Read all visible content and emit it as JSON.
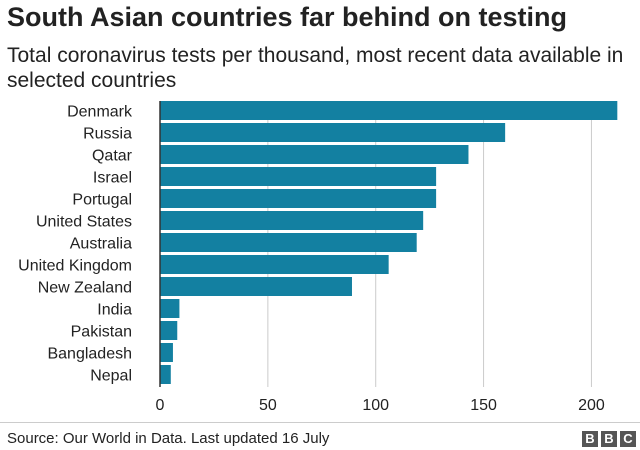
{
  "header": {
    "title": "South Asian countries far behind on testing",
    "subtitle": "Total coronavirus tests per thousand, most recent data available in selected countries"
  },
  "footer": {
    "source": "Source: Our World in Data. Last updated 16 July",
    "logo_letters": [
      "B",
      "B",
      "C"
    ]
  },
  "colors": {
    "bar": "#1380a1",
    "grid": "#cbcbcb",
    "axis": "#333333",
    "text": "#222222"
  },
  "chart_data": {
    "type": "bar",
    "orientation": "horizontal",
    "title": "South Asian countries far behind on testing",
    "subtitle": "Total coronavirus tests per thousand, most recent data available in selected countries",
    "xlabel": "",
    "ylabel": "",
    "categories": [
      "Denmark",
      "Russia",
      "Qatar",
      "Israel",
      "Portugal",
      "United States",
      "Australia",
      "United Kingdom",
      "New Zealand",
      "India",
      "Pakistan",
      "Bangladesh",
      "Nepal"
    ],
    "values": [
      212,
      160,
      143,
      128,
      128,
      122,
      119,
      106,
      89,
      9,
      8,
      6,
      5
    ],
    "xlim": [
      0,
      210
    ],
    "xticks": [
      0,
      50,
      100,
      150,
      200
    ],
    "grid": true
  }
}
